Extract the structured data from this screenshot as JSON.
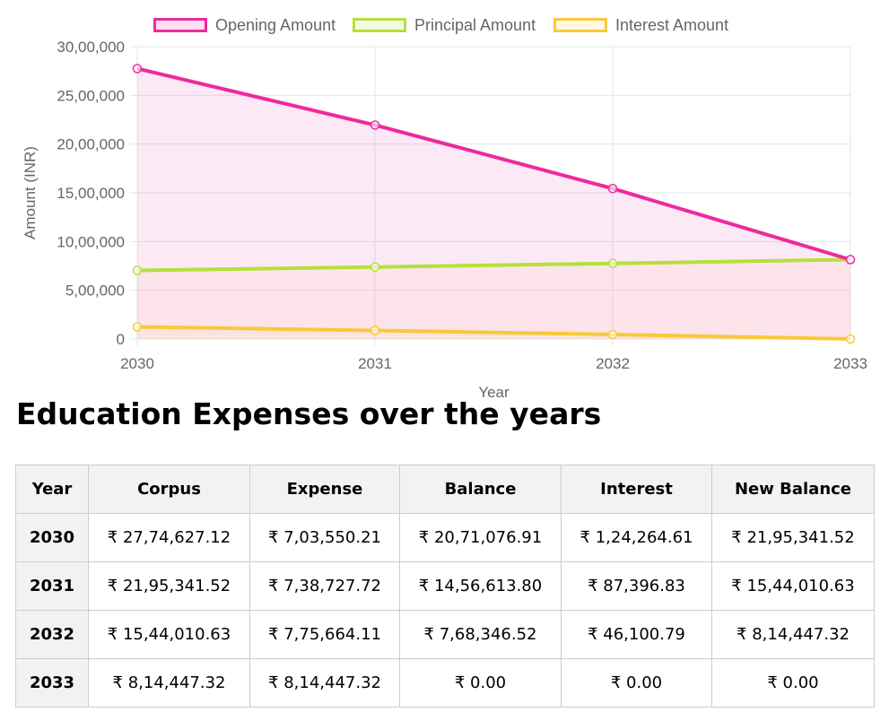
{
  "chart_data": {
    "type": "line",
    "filled": true,
    "x": [
      "2030",
      "2031",
      "2032",
      "2033"
    ],
    "xlabel": "Year",
    "ylabel": "Amount (INR)",
    "ylim": [
      0,
      3000000
    ],
    "yticks": [
      {
        "value": 0,
        "label": "0"
      },
      {
        "value": 500000,
        "label": "5,00,000"
      },
      {
        "value": 1000000,
        "label": "10,00,000"
      },
      {
        "value": 1500000,
        "label": "15,00,000"
      },
      {
        "value": 2000000,
        "label": "20,00,000"
      },
      {
        "value": 2500000,
        "label": "25,00,000"
      },
      {
        "value": 3000000,
        "label": "30,00,000"
      }
    ],
    "grid": true,
    "legend_position": "top",
    "series": [
      {
        "name": "Opening Amount",
        "color": "#ee2a9c",
        "fill": "#ee2a9c",
        "values": [
          2774627.12,
          2195341.52,
          1544010.63,
          814447.32
        ]
      },
      {
        "name": "Principal Amount",
        "color": "#b5e03a",
        "fill": "#f9c2a0",
        "values": [
          703550.21,
          738727.72,
          775664.11,
          814447.32
        ]
      },
      {
        "name": "Interest Amount",
        "color": "#f8c93a",
        "fill": "#fbe0a8",
        "values": [
          124264.61,
          87396.83,
          46100.79,
          0
        ]
      }
    ]
  },
  "section_title": "Education Expenses over the years",
  "table": {
    "headers": [
      "Year",
      "Corpus",
      "Expense",
      "Balance",
      "Interest",
      "New Balance"
    ],
    "rows": [
      [
        "2030",
        "₹ 27,74,627.12",
        "₹ 7,03,550.21",
        "₹ 20,71,076.91",
        "₹ 1,24,264.61",
        "₹ 21,95,341.52"
      ],
      [
        "2031",
        "₹ 21,95,341.52",
        "₹ 7,38,727.72",
        "₹ 14,56,613.80",
        "₹ 87,396.83",
        "₹ 15,44,010.63"
      ],
      [
        "2032",
        "₹ 15,44,010.63",
        "₹ 7,75,664.11",
        "₹ 7,68,346.52",
        "₹ 46,100.79",
        "₹ 8,14,447.32"
      ],
      [
        "2033",
        "₹ 8,14,447.32",
        "₹ 8,14,447.32",
        "₹ 0.00",
        "₹ 0.00",
        "₹ 0.00"
      ]
    ]
  }
}
